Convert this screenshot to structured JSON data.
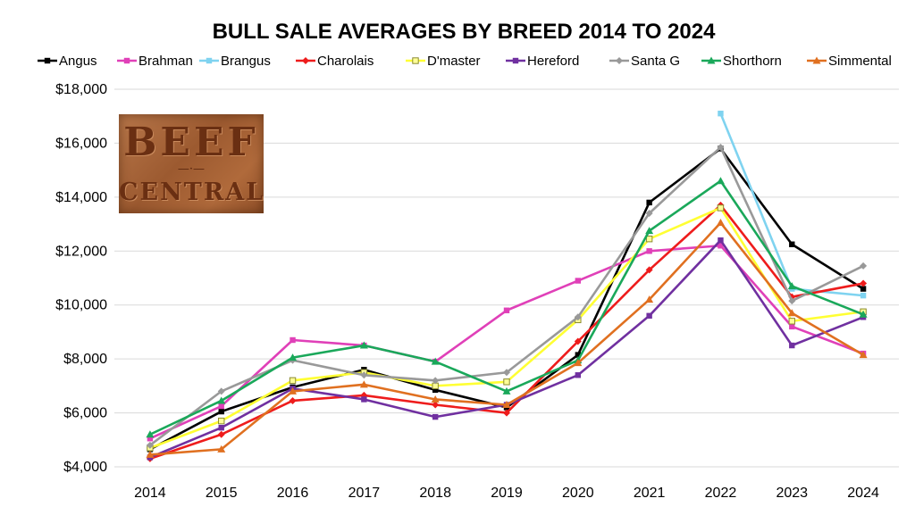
{
  "chart_data": {
    "type": "line",
    "title": "BULL SALE AVERAGES BY BREED 2014 TO 2024",
    "xlabel": "",
    "ylabel": "",
    "x": [
      "2014",
      "2015",
      "2016",
      "2017",
      "2018",
      "2019",
      "2020",
      "2021",
      "2022",
      "2023",
      "2024"
    ],
    "ylim": [
      4000,
      18000
    ],
    "yticks": [
      4000,
      6000,
      8000,
      10000,
      12000,
      14000,
      16000,
      18000
    ],
    "ytick_labels": [
      "$4,000",
      "$6,000",
      "$8,000",
      "$10,000",
      "$12,000",
      "$14,000",
      "$16,000",
      "$18,000"
    ],
    "grid": true,
    "legend": "top",
    "series": [
      {
        "name": "Angus",
        "color": "#000000",
        "marker": "square",
        "values": [
          4650,
          6050,
          6950,
          7600,
          6850,
          6200,
          8150,
          13800,
          15800,
          12250,
          10600
        ]
      },
      {
        "name": "Brahman",
        "color": "#e040b8",
        "marker": "square",
        "values": [
          5050,
          6250,
          8700,
          8500,
          7900,
          9800,
          10900,
          12000,
          12200,
          9200,
          8200
        ]
      },
      {
        "name": "Brangus",
        "color": "#7fd3f0",
        "marker": "square",
        "values": [
          null,
          null,
          null,
          null,
          null,
          null,
          null,
          null,
          17100,
          10600,
          10350
        ]
      },
      {
        "name": "Charolais",
        "color": "#ee1c1c",
        "marker": "diamond",
        "values": [
          4300,
          5200,
          6450,
          6650,
          6300,
          6000,
          8650,
          11300,
          13700,
          10300,
          10800
        ]
      },
      {
        "name": "D'master",
        "color": "#ffff33",
        "marker": "square-open",
        "values": [
          4700,
          5700,
          7200,
          7500,
          7000,
          7150,
          9450,
          12450,
          13600,
          9400,
          9750
        ]
      },
      {
        "name": "Hereford",
        "color": "#7030a0",
        "marker": "square",
        "values": [
          4350,
          5450,
          6900,
          6500,
          5850,
          6300,
          7400,
          9600,
          12400,
          8500,
          9550
        ]
      },
      {
        "name": "Santa G",
        "color": "#999999",
        "marker": "diamond",
        "values": [
          4800,
          6800,
          7950,
          7400,
          7200,
          7500,
          9550,
          13400,
          15850,
          10150,
          11450
        ]
      },
      {
        "name": "Shorthorn",
        "color": "#1aa85a",
        "marker": "triangle",
        "values": [
          5200,
          6450,
          8050,
          8500,
          7900,
          6800,
          7950,
          12750,
          14600,
          10700,
          9650
        ]
      },
      {
        "name": "Simmental",
        "color": "#e07020",
        "marker": "triangle",
        "values": [
          4450,
          4650,
          6800,
          7050,
          6500,
          6300,
          7850,
          10200,
          13050,
          9700,
          8150
        ]
      }
    ]
  },
  "logo": {
    "line1": "BEEF",
    "mid": "—·—",
    "line2": "CENTRAL"
  }
}
